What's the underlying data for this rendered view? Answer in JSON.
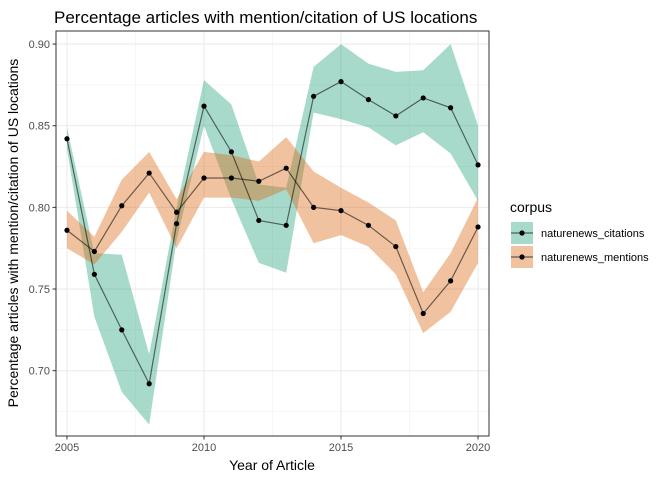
{
  "chart_data": {
    "type": "line",
    "title": "Percentage articles with mention/citation of US locations",
    "xlabel": "Year of Article",
    "ylabel": "Percentage articles with mention/citation of US locations",
    "xlim": [
      2004.6,
      2020.4
    ],
    "ylim": [
      0.66,
      0.908
    ],
    "x_ticks": [
      2005,
      2010,
      2015,
      2020
    ],
    "x_tick_labels": [
      "2005",
      "2010",
      "2015",
      "2020"
    ],
    "y_ticks": [
      0.7,
      0.75,
      0.8,
      0.85,
      0.9
    ],
    "y_tick_labels": [
      "0.70",
      "0.75",
      "0.80",
      "0.85",
      "0.90"
    ],
    "grid": true,
    "legend": {
      "title": "corpus",
      "position": "right"
    },
    "x": [
      2005,
      2006,
      2007,
      2008,
      2009,
      2010,
      2011,
      2012,
      2013,
      2014,
      2015,
      2016,
      2017,
      2018,
      2019,
      2020
    ],
    "series": [
      {
        "name": "naturenews_citations",
        "color": "#1b9e77",
        "values": [
          0.842,
          0.759,
          0.725,
          0.692,
          0.79,
          0.862,
          0.834,
          0.792,
          0.789,
          0.868,
          0.877,
          0.866,
          0.856,
          0.867,
          0.861,
          0.826
        ],
        "lower": [
          0.836,
          0.733,
          0.687,
          0.667,
          0.78,
          0.85,
          0.805,
          0.766,
          0.76,
          0.858,
          0.854,
          0.849,
          0.838,
          0.846,
          0.833,
          0.804
        ],
        "upper": [
          0.849,
          0.772,
          0.771,
          0.71,
          0.8,
          0.878,
          0.863,
          0.814,
          0.812,
          0.886,
          0.9,
          0.888,
          0.883,
          0.884,
          0.9,
          0.85
        ]
      },
      {
        "name": "naturenews_mentions",
        "color": "#d95f02",
        "values": [
          0.786,
          0.773,
          0.801,
          0.821,
          0.797,
          0.818,
          0.818,
          0.816,
          0.824,
          0.8,
          0.798,
          0.789,
          0.776,
          0.735,
          0.755,
          0.788
        ],
        "lower": [
          0.775,
          0.765,
          0.785,
          0.809,
          0.775,
          0.806,
          0.806,
          0.804,
          0.811,
          0.778,
          0.783,
          0.776,
          0.759,
          0.723,
          0.736,
          0.766
        ],
        "upper": [
          0.798,
          0.782,
          0.817,
          0.834,
          0.805,
          0.834,
          0.832,
          0.828,
          0.843,
          0.822,
          0.812,
          0.803,
          0.792,
          0.748,
          0.772,
          0.806
        ]
      }
    ]
  }
}
